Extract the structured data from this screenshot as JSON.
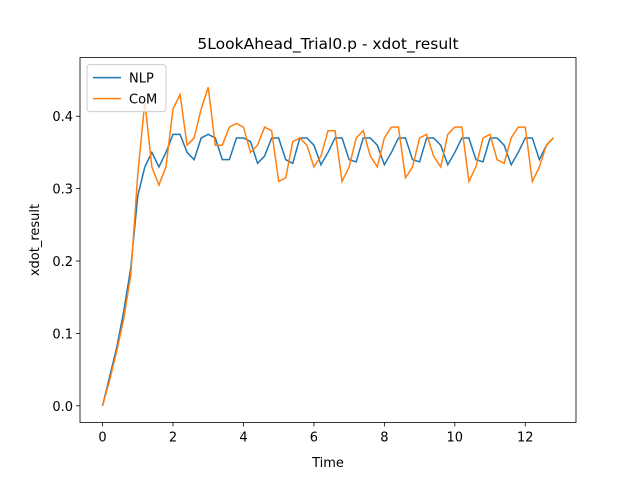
{
  "chart_data": {
    "type": "line",
    "title": "5LookAhead_Trial0.p - xdot_result",
    "x_label": "Time",
    "y_label": "xdot_result",
    "x": [
      0,
      0.2,
      0.4,
      0.6,
      0.8,
      1,
      1.2,
      1.4,
      1.6,
      1.8,
      2,
      2.2,
      2.4,
      2.6,
      2.8,
      3,
      3.2,
      3.4,
      3.6,
      3.8,
      4,
      4.2,
      4.4,
      4.6,
      4.8,
      5,
      5.2,
      5.4,
      5.6,
      5.8,
      6,
      6.2,
      6.4,
      6.6,
      6.8,
      7,
      7.2,
      7.4,
      7.6,
      7.8,
      8,
      8.2,
      8.4,
      8.6,
      8.8,
      9,
      9.2,
      9.4,
      9.6,
      9.8,
      10,
      10.2,
      10.4,
      10.6,
      10.8,
      11,
      11.2,
      11.4,
      11.6,
      11.8,
      12,
      12.2,
      12.4,
      12.6,
      12.8
    ],
    "series": [
      {
        "name": "NLP",
        "color": "#1f77b4",
        "values": [
          0,
          0.04,
          0.08,
          0.13,
          0.19,
          0.29,
          0.33,
          0.35,
          0.33,
          0.35,
          0.375,
          0.375,
          0.35,
          0.34,
          0.37,
          0.375,
          0.37,
          0.34,
          0.34,
          0.37,
          0.37,
          0.365,
          0.335,
          0.345,
          0.37,
          0.37,
          0.34,
          0.335,
          0.37,
          0.37,
          0.36,
          0.333,
          0.35,
          0.37,
          0.37,
          0.34,
          0.337,
          0.37,
          0.37,
          0.36,
          0.333,
          0.35,
          0.37,
          0.37,
          0.34,
          0.337,
          0.37,
          0.37,
          0.36,
          0.333,
          0.35,
          0.37,
          0.37,
          0.34,
          0.337,
          0.37,
          0.37,
          0.36,
          0.333,
          0.35,
          0.37,
          0.37,
          0.34,
          0.36,
          0.37
        ]
      },
      {
        "name": "CoM",
        "color": "#ff7f0e",
        "values": [
          0,
          0.035,
          0.075,
          0.12,
          0.18,
          0.32,
          0.42,
          0.33,
          0.305,
          0.33,
          0.41,
          0.43,
          0.36,
          0.37,
          0.41,
          0.44,
          0.36,
          0.36,
          0.385,
          0.39,
          0.385,
          0.35,
          0.36,
          0.385,
          0.38,
          0.31,
          0.315,
          0.365,
          0.37,
          0.36,
          0.33,
          0.345,
          0.38,
          0.38,
          0.31,
          0.33,
          0.37,
          0.38,
          0.345,
          0.33,
          0.37,
          0.385,
          0.385,
          0.315,
          0.33,
          0.37,
          0.375,
          0.345,
          0.33,
          0.375,
          0.385,
          0.385,
          0.31,
          0.33,
          0.37,
          0.375,
          0.34,
          0.335,
          0.37,
          0.385,
          0.385,
          0.31,
          0.33,
          0.36,
          0.37
        ]
      }
    ],
    "xlim": [
      -0.64,
      13.44
    ],
    "ylim": [
      -0.0229,
      0.481
    ],
    "xticks": [
      0,
      2,
      4,
      6,
      8,
      10,
      12
    ],
    "yticks": [
      {
        "value": 0,
        "label": "0.0"
      },
      0.1,
      0.2,
      0.3,
      0.4
    ],
    "legend": "upper left"
  }
}
